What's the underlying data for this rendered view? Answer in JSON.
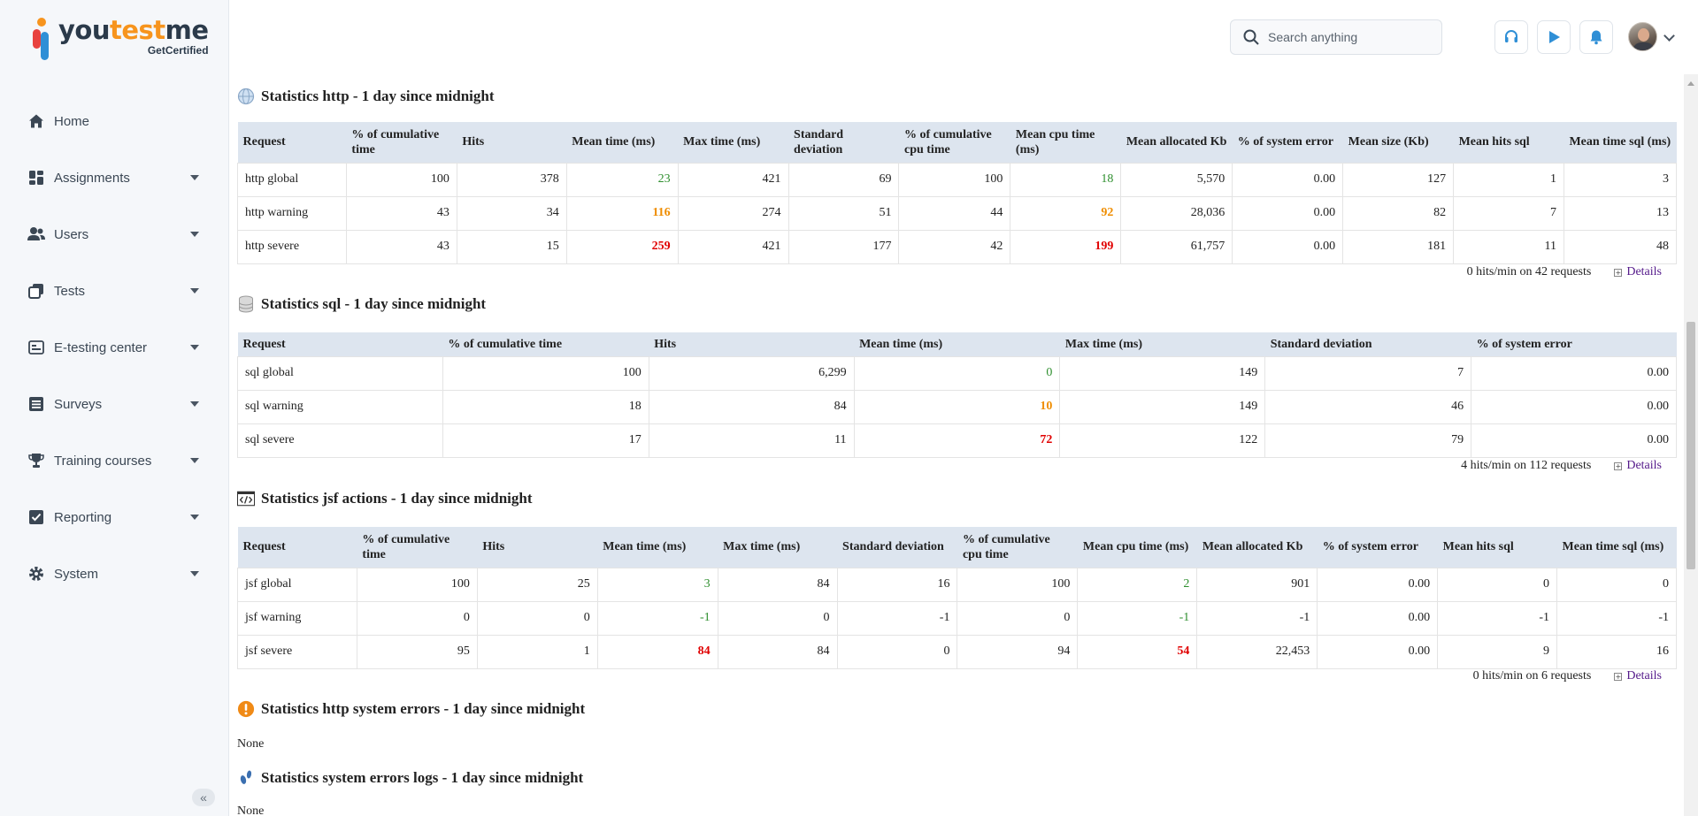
{
  "app": {
    "logo_you": "you",
    "logo_test": "test",
    "logo_me": "me",
    "logo_sub": "GetCertified"
  },
  "sidebar": {
    "items": [
      {
        "label": "Home",
        "icon": "home-icon",
        "caret": false
      },
      {
        "label": "Assignments",
        "icon": "assignments-icon",
        "caret": true
      },
      {
        "label": "Users",
        "icon": "users-icon",
        "caret": true
      },
      {
        "label": "Tests",
        "icon": "tests-icon",
        "caret": true
      },
      {
        "label": "E-testing center",
        "icon": "e-testing-icon",
        "caret": true
      },
      {
        "label": "Surveys",
        "icon": "surveys-icon",
        "caret": true
      },
      {
        "label": "Training courses",
        "icon": "trophy-icon",
        "caret": true
      },
      {
        "label": "Reporting",
        "icon": "reporting-icon",
        "caret": true
      },
      {
        "label": "System",
        "icon": "gear-icon",
        "caret": true
      }
    ],
    "collapse_label": "«"
  },
  "header": {
    "search_placeholder": "Search anything"
  },
  "sections": {
    "http": {
      "title": "Statistics http - 1 day since midnight",
      "headers": [
        "Request",
        "% of cumulative time",
        "Hits",
        "Mean time (ms)",
        "Max time (ms)",
        "Standard deviation",
        "% of cumulative cpu time",
        "Mean cpu time (ms)",
        "Mean allocated Kb",
        "% of system error",
        "Mean size (Kb)",
        "Mean hits sql",
        "Mean time sql (ms)"
      ],
      "rows": [
        [
          "http global",
          "100",
          "378",
          "23",
          "421",
          "69",
          "100",
          "18",
          "5,570",
          "0.00",
          "127",
          "1",
          "3"
        ],
        [
          "http warning",
          "43",
          "34",
          "116",
          "274",
          "51",
          "44",
          "92",
          "28,036",
          "0.00",
          "82",
          "7",
          "13"
        ],
        [
          "http severe",
          "43",
          "15",
          "259",
          "421",
          "177",
          "42",
          "199",
          "61,757",
          "0.00",
          "181",
          "11",
          "48"
        ]
      ],
      "summary": "0 hits/min on 42 requests",
      "details_label": "Details"
    },
    "sql": {
      "title": "Statistics sql - 1 day since midnight",
      "headers": [
        "Request",
        "% of cumulative time",
        "Hits",
        "Mean time (ms)",
        "Max time (ms)",
        "Standard deviation",
        "% of system error"
      ],
      "rows": [
        [
          "sql global",
          "100",
          "6,299",
          "0",
          "149",
          "7",
          "0.00"
        ],
        [
          "sql warning",
          "18",
          "84",
          "10",
          "149",
          "46",
          "0.00"
        ],
        [
          "sql severe",
          "17",
          "11",
          "72",
          "122",
          "79",
          "0.00"
        ]
      ],
      "summary": "4 hits/min on 112 requests",
      "details_label": "Details"
    },
    "jsf": {
      "title": "Statistics jsf actions - 1 day since midnight",
      "headers": [
        "Request",
        "% of cumulative time",
        "Hits",
        "Mean time (ms)",
        "Max time (ms)",
        "Standard deviation",
        "% of cumulative cpu time",
        "Mean cpu time (ms)",
        "Mean allocated Kb",
        "% of system error",
        "Mean hits sql",
        "Mean time sql (ms)"
      ],
      "rows": [
        [
          "jsf global",
          "100",
          "25",
          "3",
          "84",
          "16",
          "100",
          "2",
          "901",
          "0.00",
          "0",
          "0"
        ],
        [
          "jsf warning",
          "0",
          "0",
          "-1",
          "0",
          "-1",
          "0",
          "-1",
          "-1",
          "0.00",
          "-1",
          "-1"
        ],
        [
          "jsf severe",
          "95",
          "1",
          "84",
          "84",
          "0",
          "94",
          "54",
          "22,453",
          "0.00",
          "9",
          "16"
        ]
      ],
      "summary": "0 hits/min on 6 requests",
      "details_label": "Details"
    },
    "http_errors": {
      "title": "Statistics http system errors - 1 day since midnight",
      "body": "None"
    },
    "error_logs": {
      "title": "Statistics system errors logs - 1 day since midnight",
      "body": "None"
    }
  },
  "colors": {
    "accent_orange": "#f7941d",
    "good_green": "#2f8f2f",
    "warning_orange": "#ef8d00",
    "severe_red": "#e00000",
    "header_blue": "#2f8fd6"
  }
}
